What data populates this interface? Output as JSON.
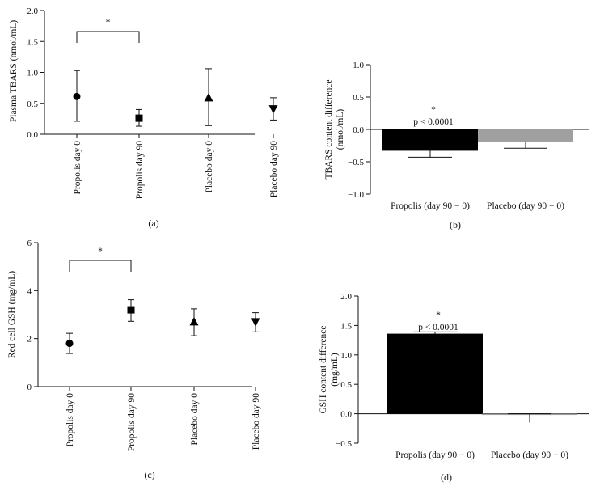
{
  "chart_data": [
    {
      "id": "a",
      "type": "scatter",
      "caption": "(a)",
      "ylabel": "Plasma TBARS (nmol/mL)",
      "ylim": [
        0,
        2.0
      ],
      "yticks": [
        "0.0",
        "0.5",
        "1.0",
        "1.5",
        "2.0"
      ],
      "categories": [
        "Propolis day 0",
        "Propolis day 90",
        "Placebo day 0",
        "Placebo day 90"
      ],
      "values": [
        0.61,
        0.26,
        0.59,
        0.41
      ],
      "err_low": [
        0.21,
        0.13,
        0.14,
        0.23
      ],
      "err_high": [
        1.03,
        0.4,
        1.06,
        0.59
      ],
      "markers": [
        "circle",
        "square",
        "triangle-up",
        "triangle-down"
      ],
      "significance": {
        "from": 0,
        "to": 1,
        "label": "*"
      }
    },
    {
      "id": "b",
      "type": "bar",
      "caption": "(b)",
      "ylabel": "TBARS content difference\n(nmol/mL)",
      "ylim": [
        -1.0,
        1.0
      ],
      "yticks": [
        "1.0",
        "0.5",
        "0.0",
        "−0.5",
        "−1.0"
      ],
      "categories": [
        "Propolis (day 90 − 0)",
        "Placebo (day 90 − 0)"
      ],
      "values": [
        -0.33,
        -0.19
      ],
      "err_low": [
        -0.43,
        -0.29
      ],
      "err_high": [
        -0.33,
        -0.19
      ],
      "colors": [
        "#000000",
        "#a0a0a0"
      ],
      "annotation": {
        "star": "*",
        "text": "p < 0.0001",
        "italic_part": "p"
      }
    },
    {
      "id": "c",
      "type": "scatter",
      "caption": "(c)",
      "ylabel": "Red cell GSH (mg/mL)",
      "ylim": [
        0,
        6
      ],
      "yticks": [
        "0",
        "2",
        "4",
        "6"
      ],
      "categories": [
        "Propolis day 0",
        "Propolis day 90",
        "Placebo day 0",
        "Placebo day 90"
      ],
      "values": [
        1.8,
        3.2,
        2.7,
        2.7
      ],
      "err_low": [
        1.38,
        2.72,
        2.12,
        2.28
      ],
      "err_high": [
        2.22,
        3.62,
        3.24,
        3.08
      ],
      "markers": [
        "circle",
        "square",
        "triangle-up",
        "triangle-down"
      ],
      "significance": {
        "from": 0,
        "to": 1,
        "label": "*"
      }
    },
    {
      "id": "d",
      "type": "bar",
      "caption": "(d)",
      "ylabel": "GSH content difference\n(mg/mL)",
      "ylim": [
        -0.5,
        2.0
      ],
      "yticks": [
        "2.0",
        "1.5",
        "1.0",
        "0.5",
        "0.0",
        "−0.5"
      ],
      "categories": [
        "Propolis (day 90 − 0)",
        "Placebo (day 90 − 0)"
      ],
      "values": [
        1.36,
        0.0
      ],
      "err_low": [
        1.36,
        -0.15
      ],
      "err_high": [
        1.39,
        0.0
      ],
      "colors": [
        "#000000",
        "#a0a0a0"
      ],
      "annotation": {
        "star": "*",
        "text": "p < 0.0001",
        "italic_part": "p"
      }
    }
  ]
}
